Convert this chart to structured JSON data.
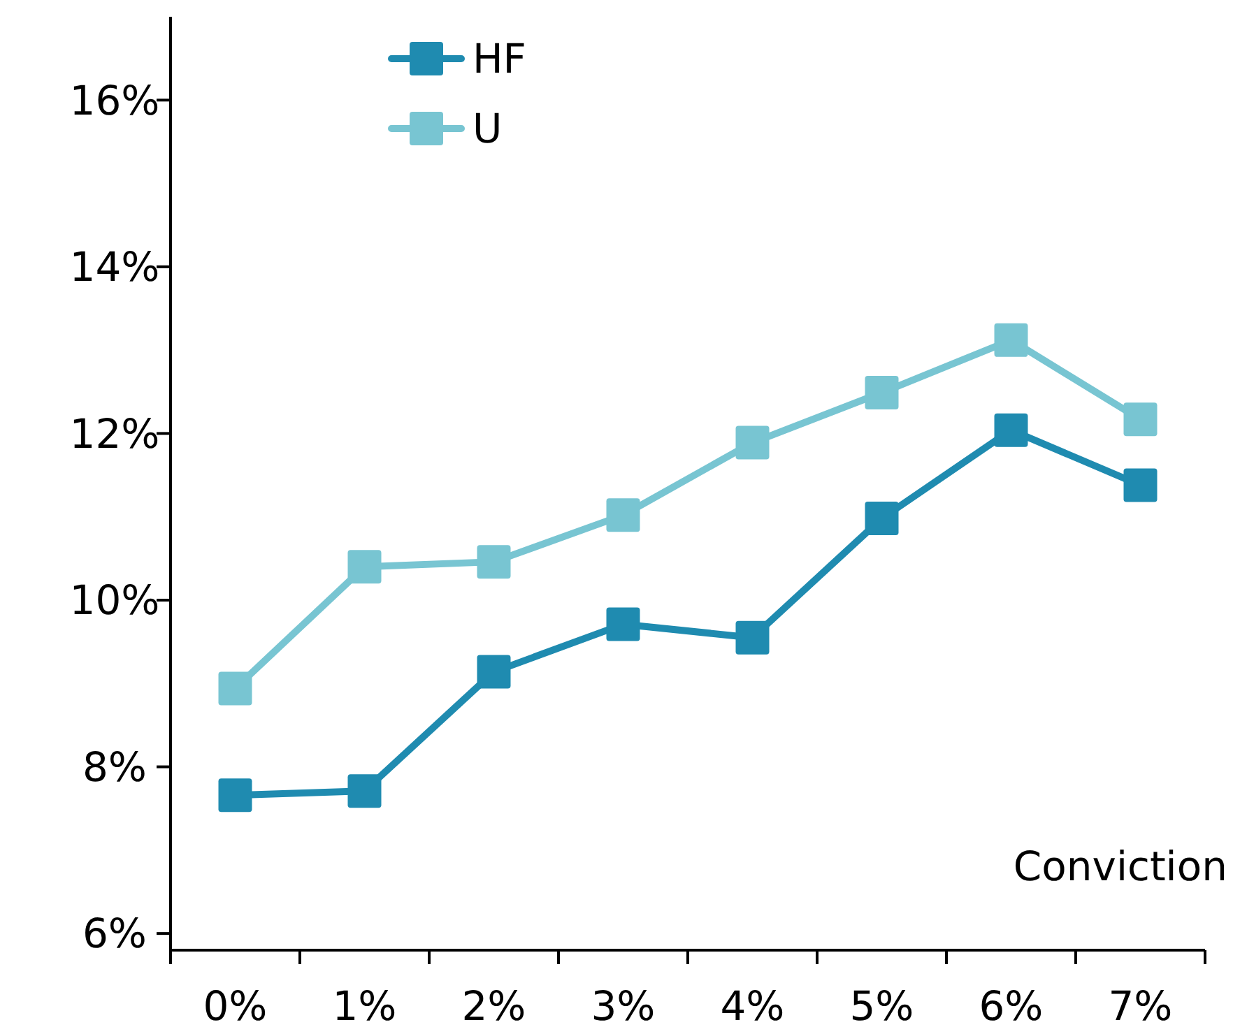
{
  "chart_data": {
    "type": "line",
    "xlabel": "Conviction",
    "categories": [
      "0%",
      "1%",
      "2%",
      "3%",
      "4%",
      "5%",
      "6%",
      "7%"
    ],
    "series": [
      {
        "name": "HF",
        "color": "#1f8bb0",
        "values": [
          7.66,
          7.71,
          9.14,
          9.71,
          9.55,
          10.98,
          12.04,
          11.38
        ]
      },
      {
        "name": "U",
        "color": "#78c5d2",
        "values": [
          8.94,
          10.4,
          10.46,
          11.02,
          11.89,
          12.49,
          13.12,
          12.17
        ]
      }
    ],
    "ylim": [
      5.8,
      17
    ],
    "yticks": [
      {
        "value": 6,
        "label": "6%"
      },
      {
        "value": 8,
        "label": "8%"
      },
      {
        "value": 10,
        "label": "10%"
      },
      {
        "value": 12,
        "label": "12%"
      },
      {
        "value": 14,
        "label": "14%"
      },
      {
        "value": 16,
        "label": "16%"
      }
    ],
    "marker": "square",
    "line_style": "solid",
    "grid": false,
    "legend": "top"
  }
}
